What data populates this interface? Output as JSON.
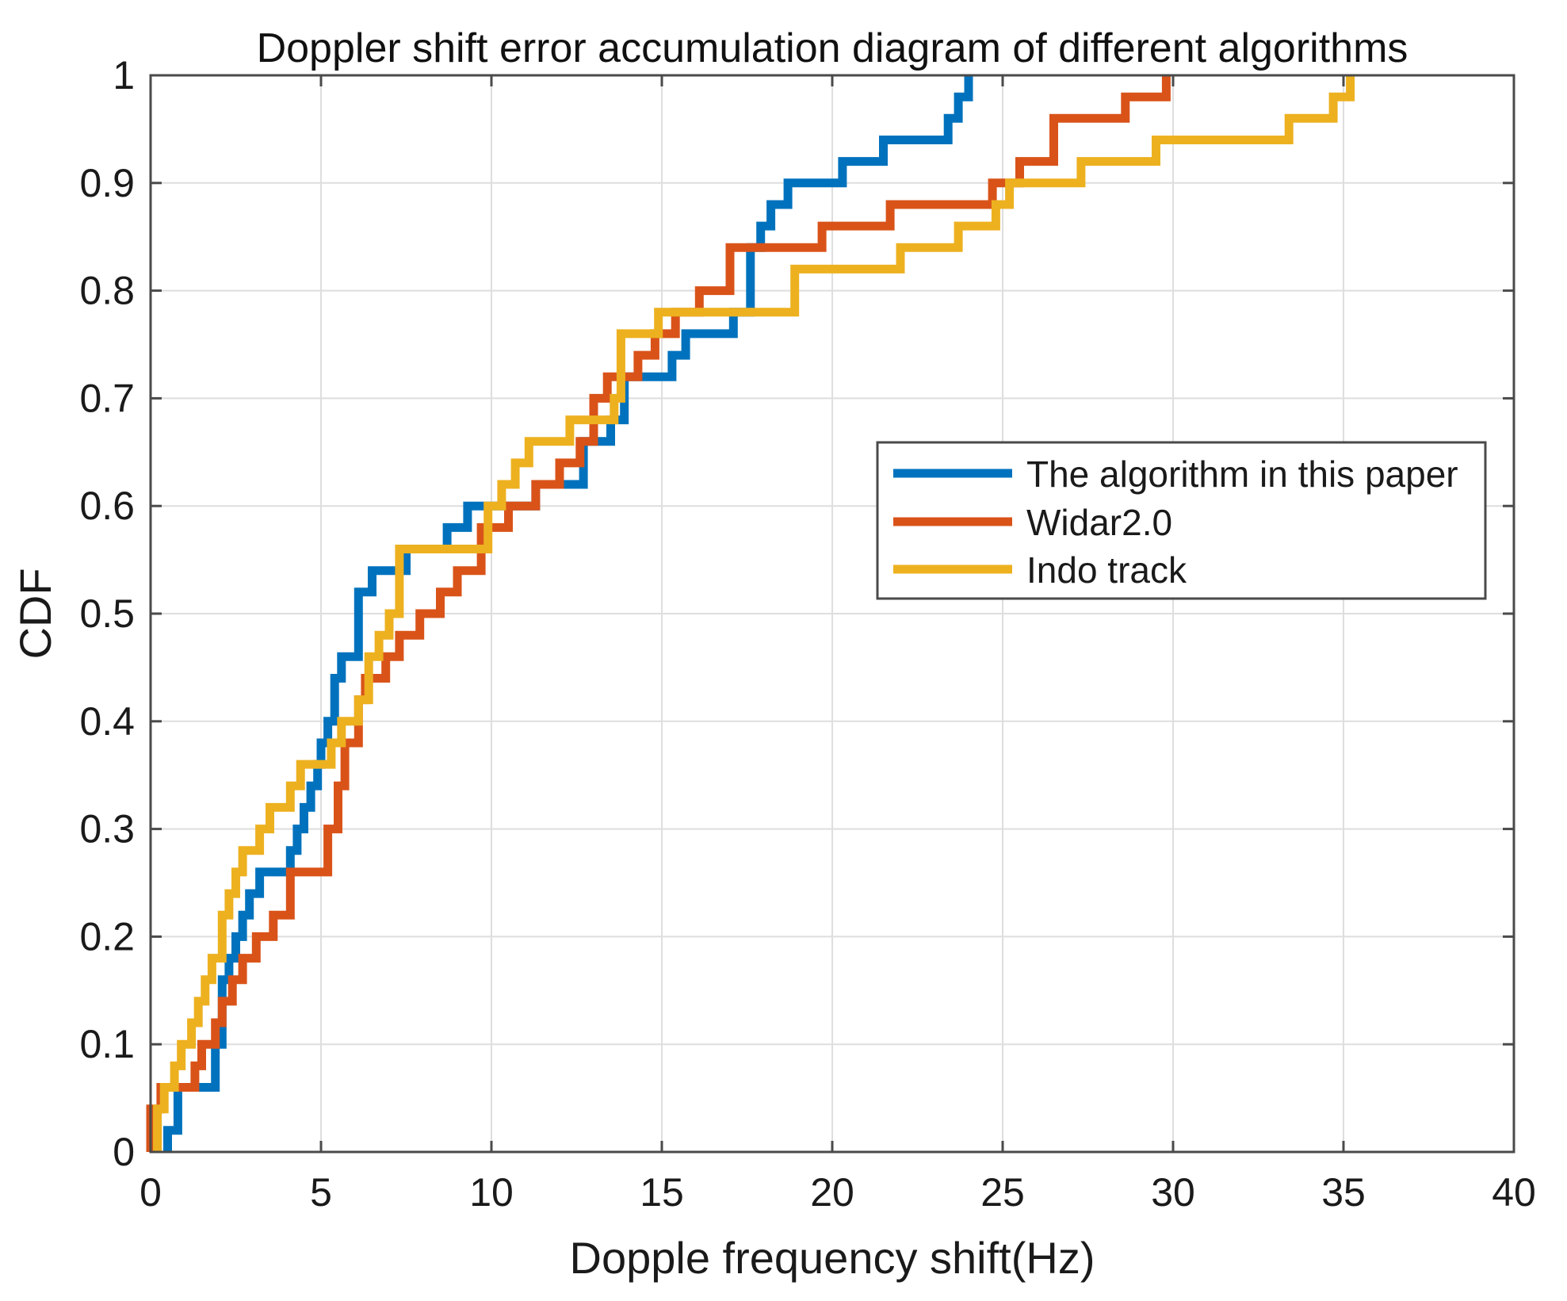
{
  "chart_data": {
    "type": "line",
    "title": "Doppler shift error accumulation diagram of different algorithms",
    "xlabel": "Dopple frequency shift(Hz)",
    "ylabel": "CDF",
    "xlim": [
      0,
      40
    ],
    "ylim": [
      0,
      1
    ],
    "grid": true,
    "legend_position": "center-right",
    "x_ticks": [
      0,
      5,
      10,
      15,
      20,
      25,
      30,
      35,
      40
    ],
    "x_tick_labels": [
      "0",
      "5",
      "10",
      "15",
      "20",
      "25",
      "30",
      "35",
      "40"
    ],
    "y_ticks": [
      0,
      0.1,
      0.2,
      0.3,
      0.4,
      0.5,
      0.6,
      0.7,
      0.8,
      0.9,
      1
    ],
    "y_tick_labels": [
      "0",
      "0.1",
      "0.2",
      "0.3",
      "0.4",
      "0.5",
      "0.6",
      "0.7",
      "0.8",
      "0.9",
      "1"
    ],
    "series": [
      {
        "name": "The algorithm in this paper",
        "color": "#0072BD",
        "step": "post",
        "x": [
          0.5,
          0.5,
          0.8,
          1.6,
          1.9,
          2.1,
          2.3,
          2.5,
          2.7,
          2.9,
          3.2,
          4.1,
          4.3,
          4.5,
          4.7,
          4.9,
          5.0,
          5.2,
          5.4,
          5.6,
          6.1,
          6.5,
          6.9,
          7.5,
          7.7,
          8.7,
          9.3,
          10.5,
          11.3,
          11.7,
          12.7,
          13.1,
          13.5,
          13.9,
          14.3,
          15.3,
          15.7,
          16.5,
          17.1,
          17.6,
          17.9,
          18.2,
          18.7,
          19.3,
          20.3,
          21.5,
          22.5,
          23.4,
          23.7,
          24.0
        ],
        "y": [
          0.0,
          0.02,
          0.06,
          0.06,
          0.1,
          0.16,
          0.18,
          0.2,
          0.22,
          0.24,
          0.26,
          0.28,
          0.3,
          0.32,
          0.34,
          0.36,
          0.38,
          0.4,
          0.44,
          0.46,
          0.52,
          0.54,
          0.54,
          0.56,
          0.56,
          0.58,
          0.6,
          0.6,
          0.62,
          0.62,
          0.66,
          0.66,
          0.68,
          0.72,
          0.72,
          0.74,
          0.76,
          0.76,
          0.78,
          0.84,
          0.86,
          0.88,
          0.9,
          0.9,
          0.92,
          0.94,
          0.94,
          0.96,
          0.98,
          1.0
        ]
      },
      {
        "name": "Widar2.0",
        "color": "#D95319",
        "step": "post",
        "x": [
          0.0,
          0.0,
          0.3,
          1.2,
          1.3,
          1.5,
          1.9,
          2.1,
          2.4,
          2.7,
          3.1,
          3.6,
          4.1,
          5.0,
          5.2,
          5.5,
          5.7,
          6.1,
          6.3,
          6.7,
          6.9,
          7.3,
          7.9,
          8.5,
          9.0,
          9.7,
          10.5,
          11.3,
          12.0,
          12.6,
          13.0,
          13.4,
          13.9,
          14.3,
          14.8,
          15.4,
          16.1,
          16.6,
          17.0,
          17.4,
          18.6,
          19.7,
          20.3,
          21.7,
          23.5,
          24.7,
          25.5,
          26.5,
          27.3,
          28.6,
          29.7,
          29.8
        ],
        "y": [
          0.0,
          0.04,
          0.06,
          0.06,
          0.08,
          0.1,
          0.12,
          0.14,
          0.16,
          0.18,
          0.2,
          0.22,
          0.26,
          0.26,
          0.3,
          0.34,
          0.38,
          0.42,
          0.44,
          0.44,
          0.46,
          0.48,
          0.5,
          0.52,
          0.54,
          0.58,
          0.6,
          0.62,
          0.64,
          0.66,
          0.7,
          0.72,
          0.72,
          0.74,
          0.76,
          0.78,
          0.8,
          0.8,
          0.84,
          0.84,
          0.84,
          0.86,
          0.86,
          0.88,
          0.88,
          0.9,
          0.92,
          0.96,
          0.96,
          0.98,
          0.98,
          1.0
        ]
      },
      {
        "name": "Indo track",
        "color": "#EDB120",
        "step": "post",
        "x": [
          0.2,
          0.2,
          0.4,
          0.7,
          0.9,
          1.2,
          1.4,
          1.6,
          1.8,
          2.1,
          2.3,
          2.5,
          2.7,
          3.2,
          3.5,
          4.1,
          4.4,
          5.0,
          5.3,
          5.6,
          6.1,
          6.4,
          6.7,
          7.0,
          7.3,
          8.2,
          9.9,
          10.3,
          10.7,
          11.1,
          12.3,
          13.3,
          13.6,
          13.8,
          14.3,
          14.9,
          15.5,
          17.5,
          18.7,
          18.9,
          21.2,
          22.0,
          23.7,
          24.4,
          24.8,
          25.2,
          26.1,
          27.3,
          29.5,
          30.3,
          31.1,
          33.4,
          34.7,
          35.2
        ],
        "y": [
          0.0,
          0.04,
          0.06,
          0.08,
          0.1,
          0.12,
          0.14,
          0.16,
          0.18,
          0.22,
          0.24,
          0.26,
          0.28,
          0.3,
          0.32,
          0.34,
          0.36,
          0.36,
          0.38,
          0.4,
          0.42,
          0.46,
          0.48,
          0.5,
          0.56,
          0.56,
          0.6,
          0.62,
          0.64,
          0.66,
          0.68,
          0.68,
          0.7,
          0.76,
          0.76,
          0.78,
          0.78,
          0.78,
          0.78,
          0.82,
          0.82,
          0.84,
          0.86,
          0.86,
          0.88,
          0.9,
          0.9,
          0.92,
          0.94,
          0.94,
          0.94,
          0.96,
          0.98,
          1.0
        ]
      }
    ]
  }
}
